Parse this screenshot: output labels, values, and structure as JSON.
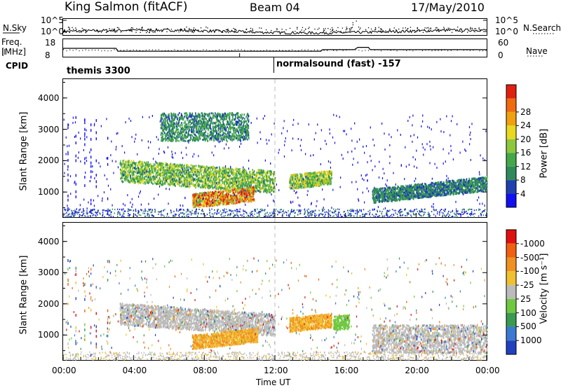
{
  "header": {
    "title": "King Salmon (fitACF)",
    "beam": "Beam 04",
    "date": "17/May/2010"
  },
  "side_labels": {
    "nsky": "N.Sky",
    "freq": "Freq.",
    "mhz": "[MHz]",
    "cpid": "CPID",
    "nsearch": "N.Search",
    "nave": "Nave"
  },
  "cpid": {
    "left": "themis 3300",
    "right": "normalsound (fast) -157"
  },
  "colors": {
    "ground": "#999999",
    "dash": "#bbbbbb"
  },
  "chart_data": [
    {
      "type": "line",
      "name": "noise panel",
      "y_left_ticks": [
        "10^5",
        "10^0"
      ],
      "y_right_ticks": [
        "10^5",
        "10^0"
      ],
      "series": [
        {
          "name": "N.Sky"
        },
        {
          "name": "N.Search"
        }
      ]
    },
    {
      "type": "line",
      "name": "frequency / nave panel",
      "y_left_ticks": [
        "18",
        "8"
      ],
      "y_right_ticks": [
        "60",
        "0"
      ],
      "x": [
        0,
        3,
        3.1,
        14.6,
        14.7,
        16.5,
        16.7,
        17.3,
        17.4,
        24
      ],
      "freq_mhz": [
        13.0,
        13.0,
        11.3,
        11.3,
        12.2,
        12.2,
        13.6,
        13.6,
        12.2,
        12.2
      ]
    },
    {
      "type": "heatmap",
      "name": "power panel",
      "xlabel": "Time UT",
      "ylabel": "Slant Range [km]",
      "x_ticks": [
        "00:00",
        "04:00",
        "08:00",
        "12:00",
        "16:00",
        "20:00",
        "00:00"
      ],
      "xlim": [
        0,
        24
      ],
      "y_ticks": [
        1000,
        2000,
        3000,
        4000
      ],
      "ylim": [
        200,
        4600
      ],
      "colorbar": {
        "label": "Power [dB]",
        "ticks": [
          "4",
          "8",
          "12",
          "16",
          "20",
          "24",
          "28"
        ],
        "colors": [
          "#1010f0",
          "#2040b0",
          "#2e8a5a",
          "#44a848",
          "#8cc83c",
          "#e8d820",
          "#f0a010",
          "#f06a10",
          "#e02010"
        ]
      },
      "features": [
        {
          "start_ut": 3.2,
          "end_ut": 12.0,
          "range_km": 1700,
          "level": 0.55
        },
        {
          "start_ut": 7.3,
          "end_ut": 10.8,
          "range_km": 750,
          "level": 0.95
        },
        {
          "start_ut": 12.8,
          "end_ut": 15.2,
          "range_km": 1350,
          "level": 0.6
        },
        {
          "start_ut": 17.5,
          "end_ut": 24.0,
          "range_km": 900,
          "level": 0.3
        },
        {
          "start_ut": 5.5,
          "end_ut": 10.5,
          "range_km": 3100,
          "level": 0.35
        }
      ]
    },
    {
      "type": "heatmap",
      "name": "velocity panel",
      "xlabel": "Time UT",
      "ylabel": "Slant Range [km]",
      "x_ticks": [
        "00:00",
        "04:00",
        "08:00",
        "12:00",
        "16:00",
        "20:00",
        "00:00"
      ],
      "xlim": [
        0,
        24
      ],
      "y_ticks": [
        1000,
        2000,
        3000,
        4000
      ],
      "ylim": [
        200,
        4600
      ],
      "colorbar": {
        "label": "Velocity [m s⁻¹]",
        "ticks": [
          "1000",
          "500",
          "100",
          "25",
          "-25",
          "-100",
          "-500",
          "-1000"
        ],
        "colors": [
          "#2040c0",
          "#3a7ad0",
          "#3a9a50",
          "#70c840",
          "#bbbbbb",
          "#f0c030",
          "#f09020",
          "#f06010",
          "#e01010"
        ]
      },
      "features": [
        {
          "start_ut": 3.2,
          "end_ut": 12.0,
          "range_km": 1700,
          "velocity": "-25 to 25"
        },
        {
          "start_ut": 7.3,
          "end_ut": 11.0,
          "range_km": 800,
          "velocity": "-100"
        },
        {
          "start_ut": 12.8,
          "end_ut": 15.2,
          "range_km": 1350,
          "velocity": "-100"
        },
        {
          "start_ut": 15.3,
          "end_ut": 16.2,
          "range_km": 1400,
          "velocity": "100"
        },
        {
          "start_ut": 17.5,
          "end_ut": 24.0,
          "range_km": 900,
          "velocity": "-25 to 25"
        }
      ]
    }
  ]
}
